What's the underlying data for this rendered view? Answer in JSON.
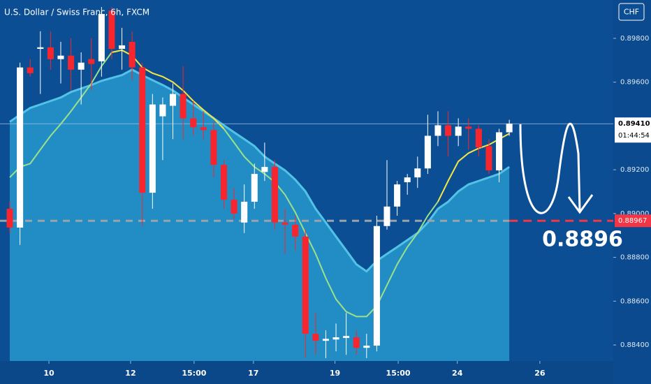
{
  "chart_data": {
    "type": "candlestick",
    "title": "U.S. Dollar / Swiss Franc, 6h, FXCM",
    "currency_button": "CHF",
    "open": [
      0.89022,
      0.88936,
      0.89667,
      0.89752,
      0.89759,
      0.89705,
      0.89721,
      0.89657,
      0.89705,
      0.89695,
      0.89927,
      0.89752,
      0.89784,
      0.89667,
      0.89095,
      0.89444,
      0.89492,
      0.89546,
      0.89435,
      0.89394,
      0.89381,
      0.89222,
      0.89063,
      0.88959,
      0.89054,
      0.8919,
      0.89213,
      0.88959,
      0.88949,
      0.88895,
      0.88451,
      0.88419,
      0.88425,
      0.88432,
      0.88435,
      0.88387,
      0.88397,
      0.88943,
      0.89032,
      0.89143,
      0.89165,
      0.89206,
      0.89355,
      0.89403,
      0.89355,
      0.89397,
      0.89387,
      0.89308,
      0.89197,
      0.89371
    ],
    "high": [
      0.89054,
      0.89689,
      0.89705,
      0.89832,
      0.89832,
      0.89784,
      0.898,
      0.89736,
      0.898,
      0.89943,
      0.89943,
      0.89848,
      0.89832,
      0.89689,
      0.89546,
      0.8953,
      0.89594,
      0.89673,
      0.89514,
      0.89467,
      0.89419,
      0.89244,
      0.89117,
      0.89133,
      0.89228,
      0.89324,
      0.89244,
      0.89022,
      0.8899,
      0.88927,
      0.88546,
      0.88467,
      0.88498,
      0.88546,
      0.88467,
      0.88451,
      0.8899,
      0.89244,
      0.89149,
      0.89181,
      0.8926,
      0.89451,
      0.89467,
      0.89467,
      0.89435,
      0.89435,
      0.89403,
      0.8934,
      0.89387,
      0.89428
    ],
    "low": [
      0.88911,
      0.88857,
      0.89625,
      0.89546,
      0.89657,
      0.89594,
      0.89562,
      0.89498,
      0.89562,
      0.89625,
      0.89705,
      0.89657,
      0.89609,
      0.88943,
      0.89022,
      0.89244,
      0.8934,
      0.8934,
      0.89355,
      0.8934,
      0.89165,
      0.89022,
      0.88975,
      0.88911,
      0.89022,
      0.89149,
      0.88927,
      0.88816,
      0.88832,
      0.8834,
      0.88355,
      0.8834,
      0.88371,
      0.88355,
      0.88355,
      0.8834,
      0.88371,
      0.88927,
      0.8899,
      0.89086,
      0.89117,
      0.89181,
      0.89308,
      0.8926,
      0.89308,
      0.89292,
      0.8926,
      0.89181,
      0.89143,
      0.89355
    ],
    "close": [
      0.88936,
      0.89667,
      0.89641,
      0.89759,
      0.89705,
      0.89721,
      0.89657,
      0.89689,
      0.89683,
      0.89911,
      0.89752,
      0.89768,
      0.89667,
      0.89095,
      0.89498,
      0.89498,
      0.89546,
      0.89435,
      0.89394,
      0.89381,
      0.89222,
      0.89063,
      0.89,
      0.89054,
      0.89181,
      0.89213,
      0.88959,
      0.88949,
      0.88895,
      0.88451,
      0.88419,
      0.88428,
      0.88435,
      0.88441,
      0.88387,
      0.88397,
      0.88943,
      0.89032,
      0.89133,
      0.89165,
      0.89206,
      0.89355,
      0.89403,
      0.89355,
      0.89397,
      0.89387,
      0.89302,
      0.89197,
      0.89371,
      0.8941
    ],
    "up_color": "#ffffff",
    "down_color": "#f7262e",
    "band": {
      "color": "#2aa3d4",
      "values": [
        0.89419,
        0.89451,
        0.89482,
        0.89498,
        0.89514,
        0.8953,
        0.89555,
        0.89571,
        0.89587,
        0.89606,
        0.89619,
        0.89632,
        0.89657,
        0.89632,
        0.89609,
        0.89587,
        0.89562,
        0.8953,
        0.89498,
        0.89467,
        0.89435,
        0.89403,
        0.89371,
        0.8934,
        0.89308,
        0.8926,
        0.89228,
        0.89197,
        0.89155,
        0.89101,
        0.89022,
        0.88959,
        0.88895,
        0.88832,
        0.88768,
        0.88736,
        0.88784,
        0.88816,
        0.88847,
        0.88879,
        0.88911,
        0.88959,
        0.89022,
        0.89054,
        0.89101,
        0.89133,
        0.89149,
        0.89165,
        0.89181,
        0.89213
      ]
    },
    "lines": [
      {
        "color": "#9be08a",
        "values": [
          0.89165,
          0.89213,
          0.89228,
          0.89292,
          0.89355,
          0.89409,
          0.89467,
          0.8953,
          0.89594,
          0.89673,
          0.89736,
          null,
          null,
          null,
          null,
          null,
          null,
          null,
          null,
          null,
          null,
          0.89387,
          0.89324,
          0.8926,
          0.89213,
          0.89181,
          0.89143,
          0.89086,
          0.89006,
          0.88911,
          0.88816,
          0.88705,
          0.88609,
          0.88552,
          0.8853,
          0.8853,
          0.88578,
          0.88673,
          0.88768,
          0.88847,
          0.88911,
          0.8899,
          0.89054,
          null,
          null,
          null,
          null,
          null,
          null,
          null
        ]
      },
      {
        "color": "#f5e642",
        "values": [
          null,
          null,
          null,
          null,
          null,
          null,
          null,
          null,
          null,
          null,
          0.89736,
          0.89746,
          0.89721,
          0.89667,
          0.89641,
          0.89625,
          0.896,
          0.89562,
          0.89514,
          0.89473,
          0.89435,
          0.89387,
          null,
          null,
          null,
          null,
          null,
          null,
          null,
          null,
          null,
          null,
          null,
          null,
          null,
          null,
          null,
          null,
          null,
          null,
          null,
          null,
          0.89054,
          0.89149,
          0.89238,
          0.89276,
          0.89298,
          0.89314,
          0.8934,
          0.89365
        ]
      }
    ],
    "last_price": {
      "value": 0.8941,
      "label": "0.89410"
    },
    "countdown": "01:44:54",
    "level": {
      "value": 0.88967,
      "label": "0.88967",
      "color": "#f23645"
    },
    "annotation": "0.8896",
    "xlim": [
      -0.96,
      59.2
    ],
    "xticks": [
      {
        "value": 3.84,
        "label": "10"
      },
      {
        "value": 11.85,
        "label": "12"
      },
      {
        "value": 18.08,
        "label": "15:00"
      },
      {
        "value": 23.9,
        "label": "17"
      },
      {
        "value": 31.9,
        "label": "19"
      },
      {
        "value": 38.1,
        "label": "15:00"
      },
      {
        "value": 43.9,
        "label": "24"
      },
      {
        "value": 52.0,
        "label": "26"
      }
    ],
    "ylim": [
      0.88327,
      0.89975
    ],
    "yticks": [
      {
        "value": 0.898,
        "label": "0.89800"
      },
      {
        "value": 0.896,
        "label": "0.89600"
      },
      {
        "value": 0.892,
        "label": "0.89200"
      },
      {
        "value": 0.89,
        "label": "0.89000"
      },
      {
        "value": 0.888,
        "label": "0.88800"
      },
      {
        "value": 0.886,
        "label": "0.88600"
      },
      {
        "value": 0.884,
        "label": "0.88400"
      }
    ]
  }
}
